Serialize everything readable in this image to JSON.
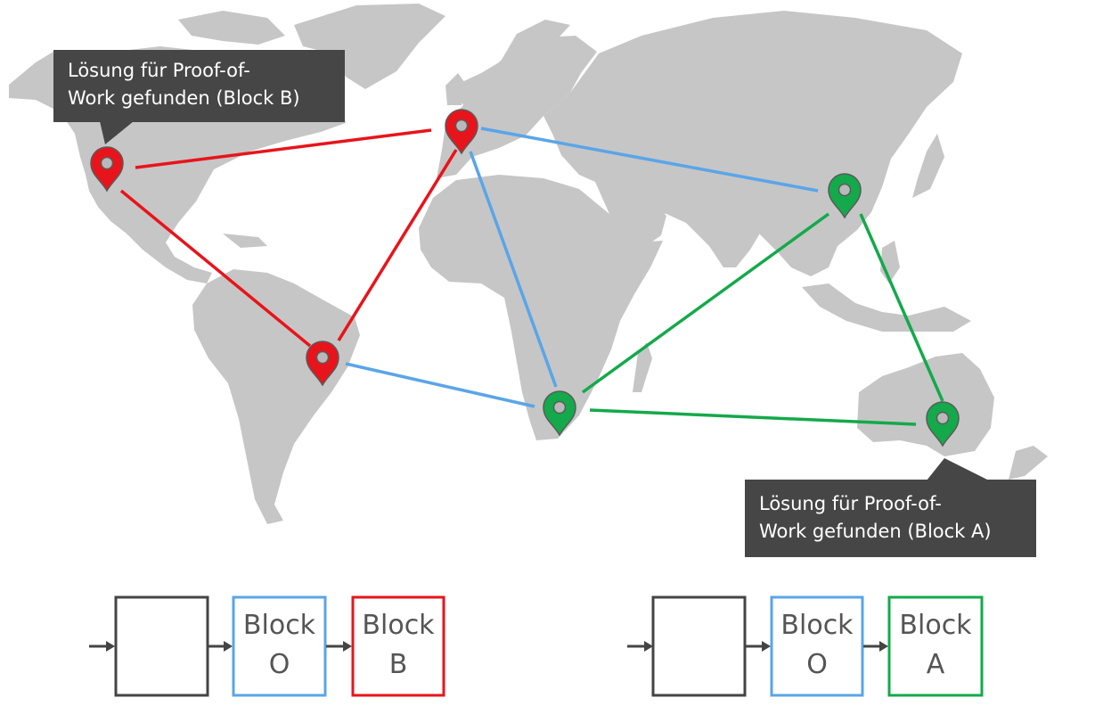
{
  "callouts": {
    "left": {
      "line1": "Lösung für Proof-of-",
      "line2": "Work gefunden (Block B)"
    },
    "right": {
      "line1": "Lösung für Proof-of-",
      "line2": "Work gefunden (Block A)"
    }
  },
  "chains": {
    "left": {
      "block1": {
        "line1": "Block",
        "line2": "O"
      },
      "block2": {
        "line1": "Block",
        "line2": "B"
      }
    },
    "right": {
      "block1": {
        "line1": "Block",
        "line2": "O"
      },
      "block2": {
        "line1": "Block",
        "line2": "A"
      }
    }
  },
  "nodes": [
    {
      "id": "north-america",
      "color": "red"
    },
    {
      "id": "europe",
      "color": "red"
    },
    {
      "id": "south-america",
      "color": "red"
    },
    {
      "id": "asia",
      "color": "green"
    },
    {
      "id": "south-africa",
      "color": "green"
    },
    {
      "id": "australia",
      "color": "green"
    }
  ],
  "colors": {
    "red": "#e8141b",
    "green": "#14a94b",
    "blue": "#5aa5e8",
    "land": "#c6c6c6",
    "callout": "#464646",
    "box": "#444444"
  }
}
